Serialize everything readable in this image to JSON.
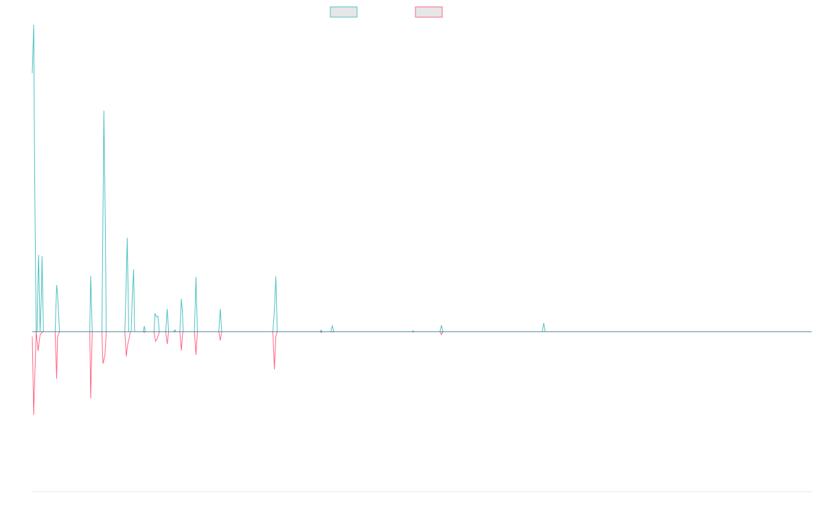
{
  "chart_data": {
    "type": "line",
    "title": "",
    "xlabel": "",
    "ylabel": "",
    "x_range": [
      0,
      160
    ],
    "ylim": [
      -100,
      100
    ],
    "grid": false,
    "legend_position": "top-center",
    "series": [
      {
        "color": "#4bc0c0",
        "fill": "#e6e6e6",
        "points": [
          [
            0,
            84.2
          ],
          [
            0.3,
            100
          ],
          [
            0.5,
            50
          ],
          [
            0.8,
            0
          ],
          [
            1,
            0
          ],
          [
            1.1,
            12
          ],
          [
            1.3,
            25
          ],
          [
            1.6,
            0
          ],
          [
            1.9,
            13
          ],
          [
            2,
            24.6
          ],
          [
            2.3,
            0
          ],
          [
            2.6,
            0
          ],
          [
            4.7,
            0
          ],
          [
            5,
            15.2
          ],
          [
            5.2,
            12
          ],
          [
            5.6,
            0
          ],
          [
            11.8,
            0
          ],
          [
            12,
            18.2
          ],
          [
            12.3,
            0
          ],
          [
            14.3,
            0
          ],
          [
            14.5,
            36
          ],
          [
            14.7,
            72
          ],
          [
            15,
            34
          ],
          [
            15.2,
            0
          ],
          [
            19,
            0
          ],
          [
            19.3,
            17
          ],
          [
            19.5,
            30.6
          ],
          [
            19.8,
            0
          ],
          [
            20.3,
            0
          ],
          [
            20.5,
            10
          ],
          [
            20.8,
            20.3
          ],
          [
            21,
            0
          ],
          [
            22.8,
            0
          ],
          [
            23,
            1.8
          ],
          [
            23.2,
            0
          ],
          [
            25,
            0
          ],
          [
            25.2,
            6
          ],
          [
            25.5,
            4.8
          ],
          [
            25.8,
            5
          ],
          [
            26.1,
            0
          ],
          [
            27.4,
            0
          ],
          [
            27.7,
            7.4
          ],
          [
            28,
            0
          ],
          [
            29,
            0
          ],
          [
            29.3,
            0.6
          ],
          [
            29.5,
            0
          ],
          [
            30.3,
            0
          ],
          [
            30.6,
            10.7
          ],
          [
            30.8,
            7
          ],
          [
            31,
            0
          ],
          [
            33.3,
            0
          ],
          [
            33.6,
            17.8
          ],
          [
            33.9,
            0
          ],
          [
            38.3,
            0
          ],
          [
            38.6,
            7.4
          ],
          [
            38.9,
            0
          ],
          [
            49.4,
            0
          ],
          [
            49.7,
            7
          ],
          [
            50,
            18
          ],
          [
            50.3,
            0
          ],
          [
            59.1,
            0
          ],
          [
            59.3,
            0.5
          ],
          [
            59.5,
            0
          ],
          [
            61.3,
            0
          ],
          [
            61.6,
            2
          ],
          [
            61.9,
            0
          ],
          [
            78,
            0
          ],
          [
            78.2,
            0.3
          ],
          [
            78.4,
            0
          ],
          [
            83.7,
            0
          ],
          [
            84,
            2.1
          ],
          [
            84.3,
            0
          ],
          [
            104.7,
            0
          ],
          [
            105,
            2.8
          ],
          [
            105.3,
            0
          ],
          [
            160,
            0
          ]
        ]
      },
      {
        "color": "#ff6384",
        "fill": "#e6e6e6",
        "points": [
          [
            0,
            -3
          ],
          [
            0.3,
            -52
          ],
          [
            0.5,
            -30
          ],
          [
            0.8,
            0
          ],
          [
            1.2,
            -12
          ],
          [
            1.6,
            -2
          ],
          [
            1.9,
            -0.8
          ],
          [
            2.2,
            0
          ],
          [
            4.7,
            0
          ],
          [
            5,
            -29.4
          ],
          [
            5.2,
            -3
          ],
          [
            5.6,
            0
          ],
          [
            11.8,
            0
          ],
          [
            12,
            -41.7
          ],
          [
            12.3,
            0
          ],
          [
            14.3,
            0
          ],
          [
            14.5,
            -20
          ],
          [
            14.9,
            -15
          ],
          [
            15.2,
            0
          ],
          [
            19,
            0
          ],
          [
            19.3,
            -15.5
          ],
          [
            19.6,
            -8
          ],
          [
            19.9,
            -4
          ],
          [
            20.1,
            0
          ],
          [
            22.8,
            0
          ],
          [
            23,
            -0.5
          ],
          [
            23.2,
            0
          ],
          [
            25,
            0
          ],
          [
            25.3,
            -6
          ],
          [
            25.7,
            -4
          ],
          [
            26.1,
            0
          ],
          [
            27.4,
            0
          ],
          [
            27.7,
            -7.7
          ],
          [
            28,
            0
          ],
          [
            29,
            0
          ],
          [
            29.2,
            -0.2
          ],
          [
            29.5,
            0
          ],
          [
            30.3,
            0
          ],
          [
            30.6,
            -11.7
          ],
          [
            30.9,
            0
          ],
          [
            33.3,
            0
          ],
          [
            33.6,
            -14.5
          ],
          [
            33.9,
            0
          ],
          [
            38.3,
            0
          ],
          [
            38.6,
            -5.5
          ],
          [
            38.9,
            0
          ],
          [
            49.4,
            0
          ],
          [
            49.7,
            -23.5
          ],
          [
            50,
            -2.8
          ],
          [
            50.3,
            0
          ],
          [
            59.1,
            0
          ],
          [
            59.3,
            -0.5
          ],
          [
            59.5,
            0
          ],
          [
            61.3,
            0
          ],
          [
            61.6,
            -0.2
          ],
          [
            61.9,
            0
          ],
          [
            78,
            0
          ],
          [
            78.2,
            -0.2
          ],
          [
            78.4,
            0
          ],
          [
            83.7,
            0
          ],
          [
            84,
            -1.9
          ],
          [
            84.3,
            0
          ],
          [
            160,
            0
          ]
        ]
      }
    ]
  }
}
